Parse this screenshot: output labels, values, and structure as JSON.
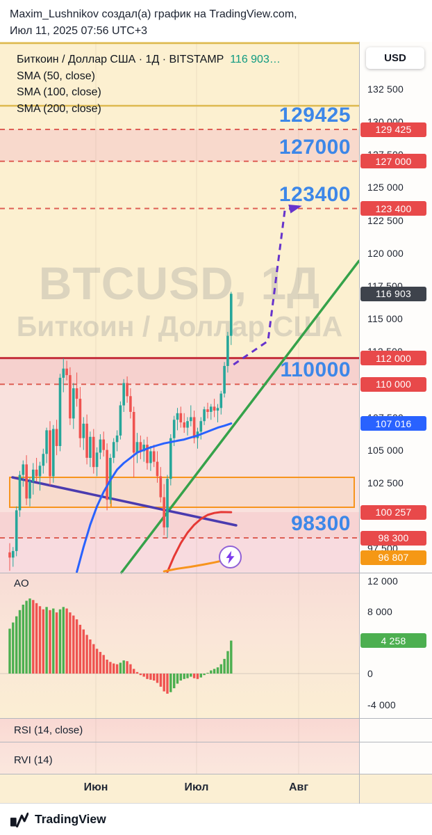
{
  "header": {
    "line1": "Maxim_Lushnikov создал(а) график на TradingView.com,",
    "line2": "Июл 11, 2025 07:56 UTC+3"
  },
  "legend": {
    "title": "Биткоин / Доллар США · 1Д · BITSTAMP",
    "value": "116 903…",
    "indicators": [
      "SMA (50, close)",
      "SMA (100, close)",
      "SMA (200, close)"
    ]
  },
  "watermark": {
    "line1": "BTCUSD, 1Д",
    "line2": "Биткоин / Доллар США"
  },
  "price_axis": {
    "currency": "USD",
    "ticks": [
      {
        "label": "132 500",
        "price": 132500
      },
      {
        "label": "130 000",
        "price": 130000
      },
      {
        "label": "127 500",
        "price": 127500
      },
      {
        "label": "125 000",
        "price": 125000
      },
      {
        "label": "122 500",
        "price": 122500
      },
      {
        "label": "120 000",
        "price": 120000
      },
      {
        "label": "117 500",
        "price": 117500
      },
      {
        "label": "115 000",
        "price": 115000
      },
      {
        "label": "112 500",
        "price": 112500
      },
      {
        "label": "110 000",
        "price": 110000
      },
      {
        "label": "107 500",
        "price": 107500
      },
      {
        "label": "105 000",
        "price": 105000
      },
      {
        "label": "102 500",
        "price": 102500
      },
      {
        "label": "100 000",
        "price": 100000
      },
      {
        "label": "97 500",
        "price": 97500
      }
    ],
    "chips": [
      {
        "label": "129 425",
        "price": 129425,
        "bg": "#e8494a"
      },
      {
        "label": "127 000",
        "price": 127000,
        "bg": "#e8494a"
      },
      {
        "label": "123 400",
        "price": 123400,
        "bg": "#e8494a"
      },
      {
        "label": "116 903",
        "price": 116903,
        "bg": "#3e434c"
      },
      {
        "label": "112 000",
        "price": 112000,
        "bg": "#e8494a"
      },
      {
        "label": "110 000",
        "price": 110000,
        "bg": "#e8494a"
      },
      {
        "label": "107 016",
        "price": 107016,
        "bg": "#2962ff"
      },
      {
        "label": "100 257",
        "price": 100257,
        "bg": "#e8494a"
      },
      {
        "label": "98 300",
        "price": 98300,
        "bg": "#e8494a"
      },
      {
        "label": "96 807",
        "price": 96807,
        "bg": "#f59815"
      }
    ]
  },
  "levels": [
    {
      "label": "129425",
      "price": 129425
    },
    {
      "label": "127000",
      "price": 127000
    },
    {
      "label": "123400",
      "price": 123400
    },
    {
      "label": "110000",
      "price": 110000
    },
    {
      "label": "98300",
      "price": 98300
    }
  ],
  "panels": {
    "ao": {
      "label": "AO",
      "ticks": [
        {
          "label": "12 000",
          "value": 12000
        },
        {
          "label": "8 000",
          "value": 8000
        },
        {
          "label": "4 000",
          "value": 4000
        },
        {
          "label": "0",
          "value": 0
        },
        {
          "label": "-4 000",
          "value": -4000
        }
      ],
      "chip": {
        "label": "4 258",
        "value": 4258,
        "bg": "#4caf50"
      }
    },
    "rsi": {
      "label": "RSI (14, close)"
    },
    "rvi": {
      "label": "RVI (14)"
    }
  },
  "time_axis": {
    "months": [
      "Июн",
      "Июл",
      "Авг"
    ]
  },
  "footer": {
    "brand": "TradingView"
  },
  "colors": {
    "up": "#26a69a",
    "down": "#ef5350",
    "ao_up": "#4caf50",
    "ao_down": "#ef5350",
    "level_text": "#3d87e8",
    "chip_red": "#e8494a"
  },
  "chart_data": {
    "type": "candlestick",
    "symbol": "BTCUSD",
    "timeframe": "1Д",
    "exchange": "BITSTAMP",
    "last_price": 116903,
    "ylim": [
      95650,
      136100
    ],
    "xlabels": [
      "Июн",
      "Июл",
      "Авг"
    ],
    "candles": [
      [
        97200,
        97900,
        95800,
        96800
      ],
      [
        96800,
        97600,
        96100,
        97300
      ],
      [
        97300,
        100700,
        96900,
        100400
      ],
      [
        100400,
        103400,
        99900,
        103100
      ],
      [
        103100,
        104200,
        102200,
        103900
      ],
      [
        103900,
        104600,
        100800,
        101300
      ],
      [
        101300,
        102900,
        100700,
        102600
      ],
      [
        102600,
        104000,
        101600,
        103500
      ],
      [
        103500,
        104400,
        102600,
        103000
      ],
      [
        103000,
        104100,
        101900,
        103800
      ],
      [
        103800,
        105100,
        103200,
        104700
      ],
      [
        104700,
        106700,
        104000,
        106500
      ],
      [
        106500,
        107200,
        102300,
        103000
      ],
      [
        103000,
        106900,
        102500,
        106600
      ],
      [
        106600,
        107300,
        104600,
        105300
      ],
      [
        105300,
        110800,
        104900,
        110500
      ],
      [
        110500,
        111980,
        109400,
        111200
      ],
      [
        111200,
        111800,
        110300,
        110700
      ],
      [
        110700,
        111300,
        106900,
        107400
      ],
      [
        107400,
        110100,
        106600,
        109700
      ],
      [
        109700,
        110900,
        108300,
        108900
      ],
      [
        108900,
        109800,
        105200,
        105900
      ],
      [
        105900,
        107500,
        105000,
        107000
      ],
      [
        107000,
        107700,
        103900,
        104400
      ],
      [
        104400,
        106400,
        103700,
        106000
      ],
      [
        106000,
        106600,
        103200,
        103700
      ],
      [
        103700,
        105200,
        103000,
        104800
      ],
      [
        104800,
        106200,
        104300,
        105800
      ],
      [
        105800,
        106400,
        104500,
        105000
      ],
      [
        105000,
        105500,
        100400,
        101200
      ],
      [
        101200,
        104700,
        100900,
        104400
      ],
      [
        104400,
        105900,
        104000,
        105600
      ],
      [
        105600,
        106500,
        104900,
        106100
      ],
      [
        106100,
        108700,
        105800,
        108400
      ],
      [
        108400,
        110400,
        107900,
        110100
      ],
      [
        110100,
        110600,
        108600,
        109100
      ],
      [
        109100,
        109700,
        107400,
        107900
      ],
      [
        107900,
        108300,
        102900,
        104800
      ],
      [
        104800,
        106300,
        104000,
        105600
      ],
      [
        105600,
        106100,
        104300,
        104900
      ],
      [
        104900,
        105800,
        104100,
        105400
      ],
      [
        105400,
        106000,
        103500,
        104000
      ],
      [
        104000,
        105300,
        103400,
        104900
      ],
      [
        104900,
        105400,
        103700,
        104100
      ],
      [
        104100,
        104900,
        102500,
        103000
      ],
      [
        103000,
        103700,
        101000,
        101400
      ],
      [
        101400,
        102400,
        98500,
        99100
      ],
      [
        99100,
        103100,
        98300,
        102800
      ],
      [
        102800,
        106200,
        102300,
        105900
      ],
      [
        105900,
        107600,
        105300,
        107300
      ],
      [
        107300,
        108200,
        106500,
        107800
      ],
      [
        107800,
        108300,
        106700,
        107100
      ],
      [
        107100,
        107800,
        106300,
        106700
      ],
      [
        106700,
        107500,
        106100,
        107200
      ],
      [
        107200,
        108400,
        106800,
        107500
      ],
      [
        107500,
        108000,
        105500,
        105900
      ],
      [
        105900,
        106700,
        105100,
        106400
      ],
      [
        106400,
        107500,
        105800,
        107200
      ],
      [
        107200,
        108300,
        106900,
        108100
      ],
      [
        108100,
        108600,
        107400,
        107900
      ],
      [
        107900,
        108500,
        107300,
        108300
      ],
      [
        108300,
        108900,
        107500,
        108000
      ],
      [
        108000,
        108500,
        107100,
        108200
      ],
      [
        108200,
        109500,
        107700,
        109300
      ],
      [
        109300,
        111700,
        109000,
        111400
      ],
      [
        111400,
        114000,
        110900,
        113700
      ],
      [
        113700,
        117050,
        113000,
        116903
      ]
    ],
    "ao_values": [
      5800,
      6600,
      7400,
      8200,
      8900,
      9400,
      9700,
      9500,
      9100,
      8700,
      8300,
      8600,
      8200,
      8400,
      7900,
      8300,
      8600,
      8400,
      7900,
      7500,
      7000,
      6300,
      5700,
      5000,
      4400,
      3800,
      3200,
      2800,
      2400,
      1800,
      1500,
      1300,
      1200,
      1400,
      1700,
      1600,
      1200,
      600,
      200,
      -200,
      -400,
      -700,
      -800,
      -900,
      -1200,
      -1700,
      -2300,
      -2600,
      -2400,
      -1900,
      -1300,
      -900,
      -700,
      -600,
      -400,
      -600,
      -700,
      -500,
      -200,
      100,
      400,
      600,
      800,
      1200,
      1900,
      2900,
      4258
    ],
    "sma_lines": [
      {
        "name": "sma-50",
        "color": "#2962ff",
        "points": [
          [
            20,
            95700
          ],
          [
            22,
            97600
          ],
          [
            24,
            99300
          ],
          [
            26,
            100700
          ],
          [
            28,
            101800
          ],
          [
            30,
            102700
          ],
          [
            32,
            103500
          ],
          [
            34,
            104000
          ],
          [
            36,
            104400
          ],
          [
            38,
            104800
          ],
          [
            40,
            105000
          ],
          [
            42,
            105200
          ],
          [
            44,
            105350
          ],
          [
            46,
            105500
          ],
          [
            48,
            105600
          ],
          [
            50,
            105700
          ],
          [
            52,
            105800
          ],
          [
            54,
            105950
          ],
          [
            56,
            106100
          ],
          [
            58,
            106300
          ],
          [
            60,
            106500
          ],
          [
            62,
            106700
          ],
          [
            64,
            106850
          ],
          [
            66,
            107016
          ]
        ]
      },
      {
        "name": "sma-100",
        "color": "#e53935",
        "points": [
          [
            47,
            95700
          ],
          [
            49,
            96900
          ],
          [
            51,
            97900
          ],
          [
            53,
            98700
          ],
          [
            55,
            99300
          ],
          [
            57,
            99750
          ],
          [
            59,
            100050
          ],
          [
            61,
            100200
          ],
          [
            63,
            100270
          ],
          [
            66,
            100257
          ]
        ]
      },
      {
        "name": "sma-200",
        "color": "#f7941d",
        "points": [
          [
            46,
            95750
          ],
          [
            50,
            95950
          ],
          [
            54,
            96100
          ],
          [
            58,
            96280
          ],
          [
            61,
            96430
          ],
          [
            64,
            96600
          ],
          [
            66,
            96807
          ]
        ]
      }
    ],
    "trend_lines": [
      {
        "name": "trend-green",
        "color": "#35a24a",
        "width": 3.5,
        "points": [
          [
            33.3,
            95652
          ],
          [
            104.1,
            119403
          ]
        ]
      },
      {
        "name": "trend-purple",
        "color": "#4a3baf",
        "width": 3.5,
        "points": [
          [
            0.8,
            102915
          ],
          [
            67.5,
            99257
          ]
        ]
      }
    ],
    "projection": {
      "name": "projection-arrow",
      "color": "#6633cc",
      "dashed": true,
      "arrow": true,
      "points": [
        [
          66.7,
          111504
        ],
        [
          77,
          113307
        ],
        [
          82,
          123275
        ],
        [
          86.1,
          123540
        ]
      ]
    },
    "horizontal_lines": [
      {
        "price": 136000,
        "style": "solid",
        "color": "#ddb94f",
        "width": 2.5
      },
      {
        "price": 131230,
        "style": "solid",
        "color": "#ddb94f",
        "width": 2.5
      },
      {
        "price": 129425,
        "style": "dashed",
        "color": "#de5f55",
        "width": 2
      },
      {
        "price": 127000,
        "style": "dashed",
        "color": "#de5f55",
        "width": 2
      },
      {
        "price": 123400,
        "style": "dashed",
        "color": "#de5f55",
        "width": 2
      },
      {
        "price": 112000,
        "style": "solid",
        "color": "#c4303c",
        "width": 3
      },
      {
        "price": 110000,
        "style": "dashed",
        "color": "#de5f55",
        "width": 2
      },
      {
        "price": 98300,
        "style": "dashed",
        "color": "#de5f55",
        "width": 2
      }
    ],
    "zone_box": {
      "i1": 0,
      "i2": 102.7,
      "top": 102915,
      "bottom": 100635,
      "divider": 30.2,
      "color": "#f7941d"
    },
    "marker": {
      "name": "lightning",
      "index": 65.8,
      "price": 96900
    }
  }
}
